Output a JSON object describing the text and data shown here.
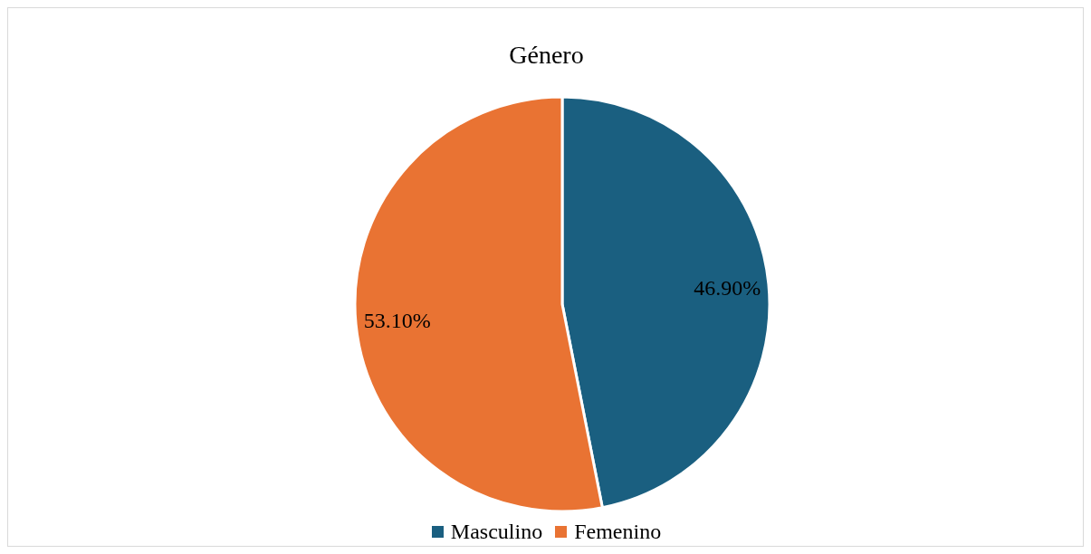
{
  "chart_data": {
    "type": "pie",
    "title": "Género",
    "categories": [
      "Masculino",
      "Femenino"
    ],
    "values": [
      46.9,
      53.1
    ],
    "colors": [
      "#1a5f80",
      "#e97333"
    ],
    "value_labels": [
      "46.90%",
      "53.10%"
    ],
    "legend": "bottom"
  }
}
